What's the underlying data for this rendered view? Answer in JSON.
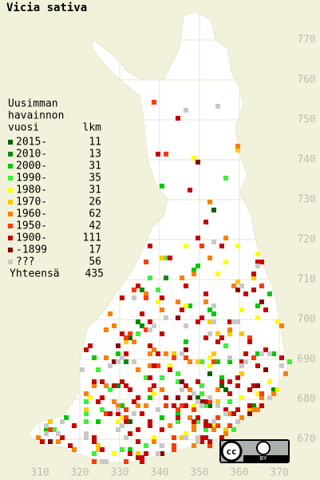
{
  "title": "Vicia sativa",
  "legend": {
    "heading": [
      "Uusimman",
      "havainnon",
      "vuosi"
    ],
    "count_heading": "lkm",
    "items": [
      {
        "label": "2015-",
        "count": 11,
        "color": "#006400"
      },
      {
        "label": "2010-",
        "count": 13,
        "color": "#008c00"
      },
      {
        "label": "2000-",
        "count": 31,
        "color": "#00c800"
      },
      {
        "label": "1990-",
        "count": 35,
        "color": "#3cf03c"
      },
      {
        "label": "1980-",
        "count": 31,
        "color": "#ffff00"
      },
      {
        "label": "1970-",
        "count": 26,
        "color": "#ffc800"
      },
      {
        "label": "1960-",
        "count": 62,
        "color": "#ff8000"
      },
      {
        "label": "1950-",
        "count": 42,
        "color": "#ff3c00"
      },
      {
        "label": "1900-",
        "count": 111,
        "color": "#c80000"
      },
      {
        "label": "-1899",
        "count": 17,
        "color": "#8c0000"
      },
      {
        "label": "???",
        "count": 56,
        "color": "#c8c8c8"
      }
    ],
    "total_label": "Yhteensä",
    "total": 435
  },
  "xticks": [
    310,
    320,
    330,
    340,
    350,
    360,
    370
  ],
  "yticks": [
    670,
    680,
    690,
    700,
    710,
    720,
    730,
    740,
    750,
    760,
    770
  ],
  "license": {
    "cc": "cc",
    "by": "BY"
  }
}
